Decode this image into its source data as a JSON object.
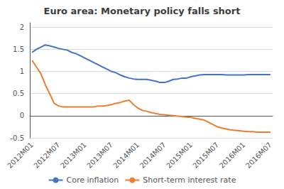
{
  "chart_data": {
    "type": "line",
    "title": "Euro area: Monetary policy falls short",
    "categories": [
      "2012M01",
      null,
      null,
      null,
      null,
      null,
      "2012M07",
      null,
      null,
      null,
      null,
      null,
      "2013M01",
      null,
      null,
      null,
      null,
      null,
      "2013M07",
      null,
      null,
      null,
      null,
      null,
      "2014M01",
      null,
      null,
      null,
      null,
      null,
      "2014M07",
      null,
      null,
      null,
      null,
      null,
      "2015M01",
      null,
      null,
      null,
      null,
      null,
      "2015M07",
      null,
      null,
      null,
      null,
      null,
      "2016M01",
      null,
      null,
      null,
      null,
      null,
      "2016M07"
    ],
    "series": [
      {
        "name": "Core inflation",
        "color": "#4472C4",
        "values": [
          1.43,
          1.5,
          1.55,
          1.6,
          1.58,
          1.55,
          1.52,
          1.5,
          1.48,
          1.43,
          1.4,
          1.35,
          1.3,
          1.25,
          1.2,
          1.15,
          1.1,
          1.05,
          1.0,
          0.97,
          0.92,
          0.88,
          0.85,
          0.83,
          0.82,
          0.82,
          0.82,
          0.8,
          0.78,
          0.75,
          0.75,
          0.78,
          0.82,
          0.83,
          0.85,
          0.85,
          0.88,
          0.9,
          0.92,
          0.93,
          0.93,
          0.93,
          0.93,
          0.93,
          0.92,
          0.92,
          0.92,
          0.92,
          0.92,
          0.93,
          0.93,
          0.93,
          0.93,
          0.93,
          0.93
        ]
      },
      {
        "name": "Short-term interest rate",
        "color": "#ED7D31",
        "values": [
          1.25,
          1.1,
          0.95,
          0.7,
          0.5,
          0.28,
          0.22,
          0.2,
          0.2,
          0.2,
          0.2,
          0.2,
          0.2,
          0.2,
          0.2,
          0.22,
          0.22,
          0.23,
          0.25,
          0.28,
          0.3,
          0.33,
          0.35,
          0.25,
          0.17,
          0.12,
          0.1,
          0.07,
          0.05,
          0.03,
          0.02,
          0.01,
          0.0,
          -0.01,
          -0.02,
          -0.03,
          -0.04,
          -0.06,
          -0.08,
          -0.1,
          -0.15,
          -0.2,
          -0.25,
          -0.28,
          -0.3,
          -0.32,
          -0.33,
          -0.34,
          -0.35,
          -0.36,
          -0.36,
          -0.37,
          -0.37,
          -0.37,
          -0.37
        ]
      }
    ],
    "ylim": [
      -0.5,
      2.1
    ],
    "yticks": [
      -0.5,
      0,
      0.5,
      1,
      1.5,
      2
    ],
    "grid": true,
    "legend": "bottom"
  }
}
